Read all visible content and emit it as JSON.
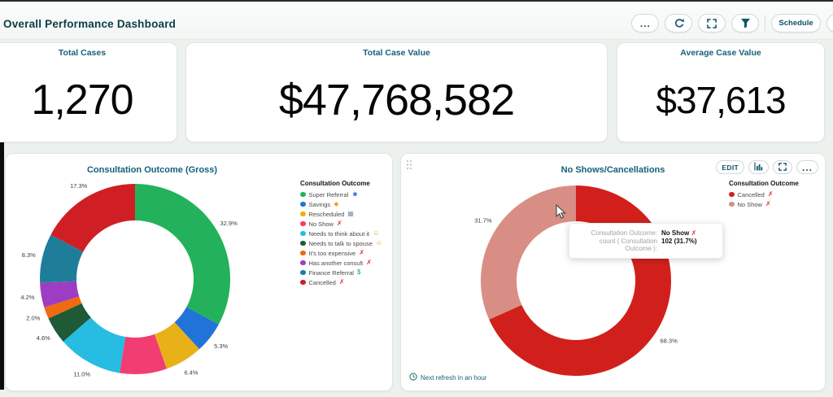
{
  "header": {
    "title": "Overall Performance Dashboard",
    "more_glyph": "...",
    "schedule_label": "Schedule",
    "lock_fragment": "S",
    "icons": [
      "ellipsis",
      "refresh-circular-arrow",
      "expand-corner-brackets",
      "filter-funnel",
      "padlock"
    ]
  },
  "kpis": [
    {
      "label": "Total Cases",
      "value": "1,270"
    },
    {
      "label": "Total Case Value",
      "value": "$47,768,582"
    },
    {
      "label": "Average Case Value",
      "value": "$37,613"
    }
  ],
  "chart_data": [
    {
      "type": "donut",
      "title": "Consultation Outcome (Gross)",
      "legend_title": "Consultation Outcome",
      "legend_position": "right",
      "series": [
        {
          "label": "Super Referral",
          "value": 32.9,
          "pct": "32.9%",
          "color": "#23b25b",
          "icon_name": "superhero-emoji",
          "suffix": "☻",
          "suffix_color": "#3b72d8"
        },
        {
          "label": "Savings",
          "value": 5.3,
          "pct": "5.3%",
          "color": "#2273d8",
          "icon_name": "money-emoji",
          "suffix": "◆",
          "suffix_color": "#e8a81c"
        },
        {
          "label": "Rescheduled",
          "value": 6.4,
          "pct": "6.4%",
          "color": "#e9b118",
          "icon_name": "calendar-emoji",
          "suffix": "▦",
          "suffix_color": "#7d93a8"
        },
        {
          "label": "No Show",
          "value": 8.0,
          "pct": null,
          "color": "#f13d72",
          "icon_name": "red-x",
          "suffix": "✗",
          "suffix_color": "#e03030"
        },
        {
          "label": "Needs to think about it",
          "value": 11.0,
          "pct": "11.0%",
          "color": "#27bce2",
          "icon_name": "thinking-emoji",
          "suffix": "☺",
          "suffix_color": "#e8a81c"
        },
        {
          "label": "Needs to talk to spouse",
          "value": 4.6,
          "pct": "4.6%",
          "color": "#1d5a35",
          "icon_name": "thinking-emoji",
          "suffix": "☺",
          "suffix_color": "#e8a81c"
        },
        {
          "label": "It's too expensive",
          "value": 2.0,
          "pct": "2.0%",
          "color": "#f06a10",
          "icon_name": "red-x",
          "suffix": "✗",
          "suffix_color": "#e03030"
        },
        {
          "label": "Has another consult",
          "value": 4.2,
          "pct": "4.2%",
          "color": "#9c3dc4",
          "icon_name": "red-x",
          "suffix": "✗",
          "suffix_color": "#e03030"
        },
        {
          "label": "Finance Referral",
          "value": 8.3,
          "pct": "8.3%",
          "color": "#1e7e99",
          "icon_name": "dollar-sign",
          "suffix": "$",
          "suffix_color": "#1ea94d"
        },
        {
          "label": "Cancelled",
          "value": 17.3,
          "pct": "17.3%",
          "color": "#d01f24",
          "icon_name": "red-x",
          "suffix": "✗",
          "suffix_color": "#e03030"
        }
      ]
    },
    {
      "type": "donut",
      "title": "No Shows/Cancellations",
      "legend_title": "Consultation Outcome",
      "legend_position": "right",
      "series": [
        {
          "label": "Cancelled",
          "value": 68.3,
          "pct": "68.3%",
          "color": "#d1201c",
          "icon_name": "red-x",
          "suffix": "✗",
          "suffix_color": "#e03030"
        },
        {
          "label": "No Show",
          "value": 31.7,
          "pct": "31.7%",
          "color": "#d88e85",
          "icon_name": "red-x",
          "suffix": "✗",
          "suffix_color": "#e03030"
        }
      ],
      "toolbar": {
        "edit_label": "EDIT",
        "more_glyph": "...",
        "icons": [
          "bar-chart-toggle",
          "expand-corner-brackets",
          "ellipsis"
        ]
      },
      "footer_note": "Next refresh in an hour"
    }
  ],
  "tooltip": {
    "row1_label": "Consultation Outcome:",
    "row1_value": "No Show",
    "x_glyph": "✗",
    "row2_label": "count ( Consultation Outcome ):",
    "row2_value": "102 (31.7%)"
  }
}
